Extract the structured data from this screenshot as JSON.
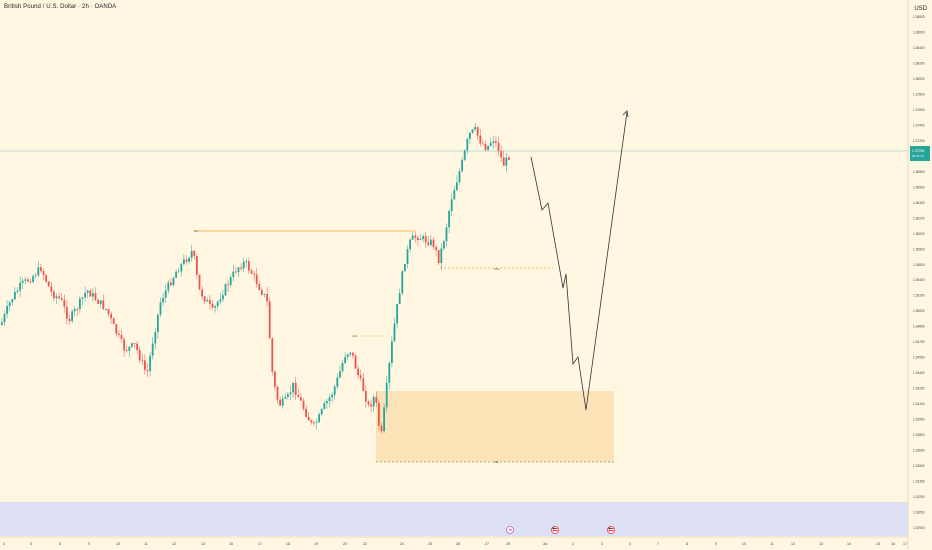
{
  "header": {
    "symbol_title": "British Pound / U.S. Dollar · 2h · OANDA",
    "currency": "USD"
  },
  "price_axis": {
    "labels": [
      "1.38800",
      "1.38600",
      "1.38400",
      "1.38200",
      "1.38000",
      "1.37800",
      "1.37600",
      "1.37400",
      "1.37200",
      "1.37000",
      "1.36800",
      "1.36600",
      "1.36400",
      "1.36200",
      "1.36000",
      "1.35800",
      "1.35600",
      "1.35400",
      "1.35200",
      "1.35000",
      "1.34850",
      "1.34700",
      "1.34550",
      "1.34400",
      "1.34250",
      "1.34100",
      "1.33950",
      "1.33800",
      "1.33650",
      "1.33500",
      "1.33350",
      "1.33200",
      "1.33050",
      "1.32900"
    ],
    "current_price": "1.37296",
    "countdown": "01:41:13"
  },
  "time_axis": {
    "labels": [
      "4",
      "5",
      "6",
      "9",
      "10",
      "11",
      "12",
      "13",
      "16",
      "17",
      "18",
      "19",
      "20",
      "22",
      "24",
      "25",
      "26",
      "27",
      "29",
      "Jul",
      "2",
      "3",
      "4",
      "7",
      "8",
      "9",
      "10",
      "11",
      "12",
      "13",
      "14",
      "15",
      "16",
      "17"
    ]
  },
  "annotations": {
    "high_level_label": "H4",
    "swing_label": "H1",
    "mid_label": "SSL",
    "zone_label": "OB"
  },
  "events": [
    {
      "icon": "event-marker",
      "kind": "dividend-like"
    },
    {
      "icon": "us-flag",
      "kind": "us-event"
    },
    {
      "icon": "us-flag",
      "kind": "us-event"
    }
  ],
  "colors": {
    "background": "#fff7e2",
    "bull": "#26a69a",
    "bear": "#ef5350",
    "price_line": "#26a69a",
    "demand_zone": "#fde0b0",
    "level_line": "#f5a623",
    "bottom_pane": "#dde0f5"
  }
}
